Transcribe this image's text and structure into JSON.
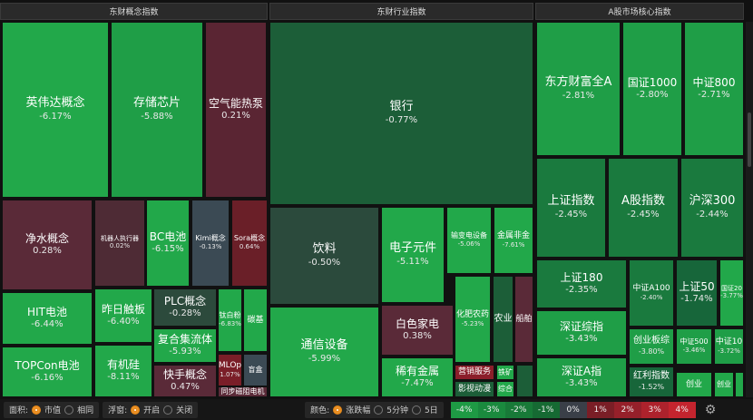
{
  "panels": [
    {
      "title": "东财概念指数",
      "cells": [
        {
          "label": "英伟达概念",
          "change": "-6.17%",
          "color": "#22a84a"
        },
        {
          "label": "存储芯片",
          "change": "-5.88%",
          "color": "#1f9e47"
        },
        {
          "label": "空气能热泵",
          "change": "0.21%",
          "color": "#5a2533"
        },
        {
          "label": "净水概念",
          "change": "0.28%",
          "color": "#5a2a38"
        },
        {
          "label": "机器人执行器",
          "change": "0.02%",
          "color": "#4e2b35"
        },
        {
          "label": "BC电池",
          "change": "-6.15%",
          "color": "#22a84a"
        },
        {
          "label": "Kimi概念",
          "change": "-0.13%",
          "color": "#3b4a54"
        },
        {
          "label": "Sora概念",
          "change": "0.64%",
          "color": "#6a1f28"
        },
        {
          "label": "HIT电池",
          "change": "-6.44%",
          "color": "#22a84a"
        },
        {
          "label": "TOPCon电池",
          "change": "-6.16%",
          "color": "#22a84a"
        },
        {
          "label": "昨日触板",
          "change": "-6.40%",
          "color": "#22a84a"
        },
        {
          "label": "有机硅",
          "change": "-8.11%",
          "color": "#22a84a"
        },
        {
          "label": "PLC概念",
          "change": "-0.28%",
          "color": "#2c4a3c"
        },
        {
          "label": "复合集流体",
          "change": "-5.93%",
          "color": "#22a84a"
        },
        {
          "label": "快手概念",
          "change": "0.47%",
          "color": "#5a2a38"
        },
        {
          "label": "钛白粉",
          "change": "-6.83%",
          "color": "#22a84a"
        },
        {
          "label": "碳基",
          "change": "",
          "color": "#22a84a"
        },
        {
          "label": "MLOp",
          "change": "1.07%",
          "color": "#7a1e28"
        },
        {
          "label": "盲盒",
          "change": "",
          "color": "#3b4a54"
        },
        {
          "label": "同步磁阻电机",
          "change": "",
          "color": "#5a2a38"
        }
      ]
    },
    {
      "title": "东财行业指数",
      "cells": [
        {
          "label": "银行",
          "change": "-0.77%",
          "color": "#1c5e38"
        },
        {
          "label": "饮料",
          "change": "-0.50%",
          "color": "#2b4a3c"
        },
        {
          "label": "电子元件",
          "change": "-5.11%",
          "color": "#22a84a"
        },
        {
          "label": "输变电设备",
          "change": "-5.06%",
          "color": "#22a84a"
        },
        {
          "label": "金属非金",
          "change": "-7.61%",
          "color": "#22a84a"
        },
        {
          "label": "通信设备",
          "change": "-5.99%",
          "color": "#22a84a"
        },
        {
          "label": "白色家电",
          "change": "0.38%",
          "color": "#5a2a38"
        },
        {
          "label": "稀有金属",
          "change": "-7.47%",
          "color": "#22a84a"
        },
        {
          "label": "化肥农药",
          "change": "-5.23%",
          "color": "#22a84a"
        },
        {
          "label": "农业",
          "change": "",
          "color": "#1c5e38"
        },
        {
          "label": "船舶",
          "change": "",
          "color": "#5a2a38"
        },
        {
          "label": "营销服务",
          "change": "",
          "color": "#8b1e2a"
        },
        {
          "label": "影视动漫",
          "change": "",
          "color": "#1c5e38"
        },
        {
          "label": "铁矿",
          "change": "",
          "color": "#22a84a"
        },
        {
          "label": "综合",
          "change": "",
          "color": "#22a84a"
        },
        {
          "label": "",
          "change": "",
          "color": "#1c5e38"
        }
      ]
    },
    {
      "title": "A股市场核心指数",
      "cells": [
        {
          "label": "东方财富全A",
          "change": "-2.81%",
          "color": "#1f9e47"
        },
        {
          "label": "国证1000",
          "change": "-2.80%",
          "color": "#1f9e47"
        },
        {
          "label": "中证800",
          "change": "-2.71%",
          "color": "#1f9e47"
        },
        {
          "label": "上证指数",
          "change": "-2.45%",
          "color": "#1a7a3e"
        },
        {
          "label": "A股指数",
          "change": "-2.45%",
          "color": "#1a7a3e"
        },
        {
          "label": "沪深300",
          "change": "-2.44%",
          "color": "#1a7a3e"
        },
        {
          "label": "上证180",
          "change": "-2.35%",
          "color": "#1a7a3e"
        },
        {
          "label": "深证综指",
          "change": "-3.43%",
          "color": "#1f9e47"
        },
        {
          "label": "深证A指",
          "change": "-3.43%",
          "color": "#1f9e47"
        },
        {
          "label": "中证A100",
          "change": "-2.40%",
          "color": "#1a7a3e"
        },
        {
          "label": "上证50",
          "change": "-1.74%",
          "color": "#17663a"
        },
        {
          "label": "国证20",
          "change": "-3.77%",
          "color": "#22a84a"
        },
        {
          "label": "创业板综",
          "change": "-3.80%",
          "color": "#1f9e47"
        },
        {
          "label": "中证500",
          "change": "-3.46%",
          "color": "#1f9e47"
        },
        {
          "label": "中证10",
          "change": "-3.72%",
          "color": "#1f9e47"
        },
        {
          "label": "红利指数",
          "change": "-1.52%",
          "color": "#17663a"
        },
        {
          "label": "创业",
          "change": "",
          "color": "#22a84a"
        },
        {
          "label": "创业",
          "change": "",
          "color": "#22a84a"
        },
        {
          "label": "",
          "change": "",
          "color": "#22a84a"
        }
      ]
    }
  ],
  "footer": {
    "area_label": "面积:",
    "area_options": [
      "市值",
      "相同"
    ],
    "area_selected": 0,
    "float_label": "浮窗:",
    "float_options": [
      "开启",
      "关闭"
    ],
    "float_selected": 0,
    "color_label": "颜色:",
    "color_options": [
      "涨跌幅",
      "5分钟",
      "5日"
    ],
    "color_selected": 0,
    "legend": [
      {
        "t": "-4%",
        "c": "#1e9a44"
      },
      {
        "t": "-3%",
        "c": "#1a8a3e"
      },
      {
        "t": "-2%",
        "c": "#187a38"
      },
      {
        "t": "-1%",
        "c": "#166a33"
      },
      {
        "t": "0%",
        "c": "#3a3f48"
      },
      {
        "t": "1%",
        "c": "#7a1e26"
      },
      {
        "t": "2%",
        "c": "#96202a"
      },
      {
        "t": "3%",
        "c": "#ad222c"
      },
      {
        "t": "4%",
        "c": "#c4242e"
      }
    ],
    "settings_icon": "gear-icon"
  }
}
